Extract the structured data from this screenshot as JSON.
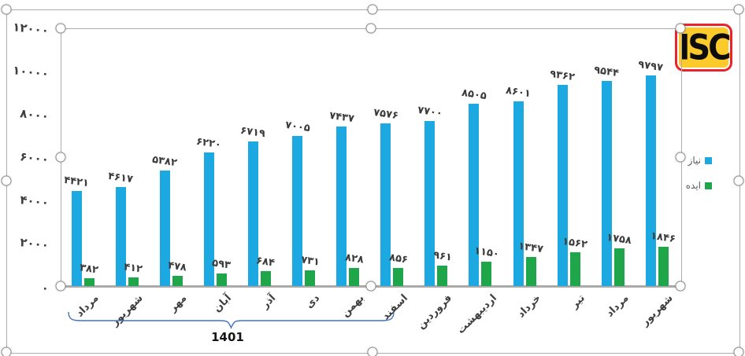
{
  "chart_data": {
    "type": "bar",
    "title": "",
    "categories": [
      "مرداد",
      "شهریور",
      "مهر",
      "آبان",
      "آذر",
      "دی",
      "بهمن",
      "اسفند",
      "فروردین",
      "اردیبهشت",
      "خرداد",
      "تیر",
      "مرداد",
      "شهریور"
    ],
    "series": [
      {
        "name": "نیاز",
        "color": "#1ca9e2",
        "values": [
          4421,
          4617,
          5382,
          6220,
          6719,
          7005,
          7437,
          7576,
          7700,
          8505,
          8601,
          9362,
          9544,
          9797
        ],
        "value_labels_fa": [
          "۴۴۲۱",
          "۴۶۱۷",
          "۵۳۸۲",
          "۶۲۲۰",
          "۶۷۱۹",
          "۷۰۰۵",
          "۷۴۳۷",
          "۷۵۷۶",
          "۷۷۰۰",
          "۸۵۰۵",
          "۸۶۰۱",
          "۹۳۶۲",
          "۹۵۴۴",
          "۹۷۹۷"
        ]
      },
      {
        "name": "ایده",
        "color": "#1fa64a",
        "values": [
          382,
          412,
          478,
          593,
          684,
          731,
          828,
          856,
          961,
          1150,
          1347,
          1562,
          1758,
          1846
        ],
        "value_labels_fa": [
          "۳۸۲",
          "۴۱۲",
          "۴۷۸",
          "۵۹۳",
          "۶۸۴",
          "۷۳۱",
          "۸۲۸",
          "۸۵۶",
          "۹۶۱",
          "۱۱۵۰",
          "۱۳۴۷",
          "۱۵۶۲",
          "۱۷۵۸",
          "۱۸۴۶"
        ]
      }
    ],
    "ylim": [
      0,
      12000
    ],
    "ytick_step": 2000,
    "ytick_labels_fa": [
      "۰",
      "۲۰۰۰",
      "۴۰۰۰",
      "۶۰۰۰",
      "۸۰۰۰",
      "۱۰۰۰۰",
      "۱۲۰۰۰"
    ],
    "grid": false,
    "legend_position": "right",
    "annotation": {
      "label": "1401",
      "span_categories_start": 0,
      "span_categories_end": 7
    }
  },
  "legend": {
    "items": [
      {
        "label": "نیاز",
        "color": "#1ca9e2"
      },
      {
        "label": "ایده",
        "color": "#1fa64a"
      }
    ]
  },
  "logo": {
    "text": "ISC"
  },
  "colors": {
    "bar_blue": "#1ca9e2",
    "bar_green": "#1fa64a",
    "label_text": "#3b3b3b",
    "axis_gray": "#a9a9a9",
    "brace_blue": "#4472c4",
    "logo_yellow": "#fcca2b",
    "logo_red": "#e9242c"
  }
}
